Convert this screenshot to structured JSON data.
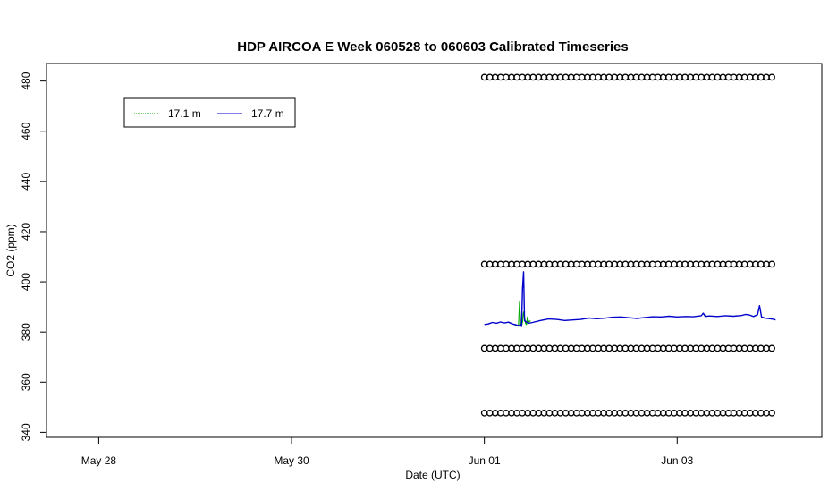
{
  "chart_data": {
    "type": "line",
    "title": "HDP AIRCOA E  Week 060528 to 060603  Calibrated Timeseries",
    "xlabel": "Date (UTC)",
    "ylabel": "CO2 (ppm)",
    "x_unit": "days",
    "xlim": [
      "2006-05-27 11:00",
      "2006-06-04 12:00"
    ],
    "ylim": [
      338,
      487
    ],
    "x_ticks": [
      {
        "label": "May 28",
        "value": "2006-05-28"
      },
      {
        "label": "May 30",
        "value": "2006-05-30"
      },
      {
        "label": "Jun 01",
        "value": "2006-06-01"
      },
      {
        "label": "Jun 03",
        "value": "2006-06-03"
      }
    ],
    "y_ticks": [
      340,
      360,
      380,
      400,
      420,
      440,
      460,
      480
    ],
    "grid": false,
    "legend": {
      "position": "top-left",
      "entries": [
        {
          "label": "17.1 m",
          "color": "#00aa00",
          "style": "dotted"
        },
        {
          "label": "17.7 m",
          "color": "#0000cc",
          "style": "solid"
        }
      ]
    },
    "series": [
      {
        "name": "17.1 m",
        "color": "#00aa00",
        "x": [
          "2006-06-01 07:30",
          "2006-06-01 08:00",
          "2006-06-01 08:30",
          "2006-06-01 08:45",
          "2006-06-01 09:00",
          "2006-06-01 09:15",
          "2006-06-01 09:30",
          "2006-06-01 09:45",
          "2006-06-01 10:00",
          "2006-06-01 10:15",
          "2006-06-01 10:30",
          "2006-06-01 10:45",
          "2006-06-01 11:00",
          "2006-06-01 11:30"
        ],
        "y": [
          383.0,
          382.5,
          382.3,
          392.0,
          383.0,
          382.6,
          384.0,
          388.0,
          386.0,
          383.5,
          383.0,
          386.0,
          384.0,
          384.5
        ]
      },
      {
        "name": "17.7 m",
        "color": "#0000cc",
        "x": [
          "2006-06-01 00:00",
          "2006-06-01 01:00",
          "2006-06-01 02:00",
          "2006-06-01 03:00",
          "2006-06-01 04:00",
          "2006-06-01 05:00",
          "2006-06-01 06:00",
          "2006-06-01 07:00",
          "2006-06-01 08:00",
          "2006-06-01 08:30",
          "2006-06-01 09:00",
          "2006-06-01 09:15",
          "2006-06-01 09:30",
          "2006-06-01 09:45",
          "2006-06-01 10:00",
          "2006-06-01 11:00",
          "2006-06-01 12:00",
          "2006-06-01 14:00",
          "2006-06-01 16:00",
          "2006-06-01 18:00",
          "2006-06-01 20:00",
          "2006-06-01 22:00",
          "2006-06-02 00:00",
          "2006-06-02 02:00",
          "2006-06-02 04:00",
          "2006-06-02 06:00",
          "2006-06-02 08:00",
          "2006-06-02 10:00",
          "2006-06-02 12:00",
          "2006-06-02 14:00",
          "2006-06-02 16:00",
          "2006-06-02 18:00",
          "2006-06-02 20:00",
          "2006-06-02 22:00",
          "2006-06-03 00:00",
          "2006-06-03 02:00",
          "2006-06-03 04:00",
          "2006-06-03 06:00",
          "2006-06-03 06:30",
          "2006-06-03 07:00",
          "2006-06-03 08:00",
          "2006-06-03 10:00",
          "2006-06-03 12:00",
          "2006-06-03 14:00",
          "2006-06-03 16:00",
          "2006-06-03 17:00",
          "2006-06-03 18:00",
          "2006-06-03 19:00",
          "2006-06-03 20:00",
          "2006-06-03 20:30",
          "2006-06-03 21:00",
          "2006-06-03 22:00",
          "2006-06-04 00:00",
          "2006-06-04 00:30"
        ],
        "y": [
          383.0,
          383.2,
          383.8,
          383.5,
          384.0,
          383.6,
          383.9,
          383.2,
          382.8,
          382.5,
          383.0,
          382.2,
          397.0,
          404.0,
          384.5,
          383.5,
          383.8,
          384.6,
          385.2,
          385.0,
          384.6,
          384.8,
          385.0,
          385.6,
          385.3,
          385.5,
          385.9,
          386.0,
          385.7,
          385.4,
          385.8,
          386.1,
          386.0,
          386.3,
          386.0,
          386.2,
          386.1,
          386.5,
          387.5,
          386.2,
          386.4,
          386.2,
          386.5,
          386.3,
          386.6,
          387.0,
          386.8,
          386.2,
          386.9,
          390.5,
          386.0,
          385.5,
          385.1,
          384.8
        ]
      }
    ],
    "calibration_points": {
      "levels": [
        481.5,
        407.0,
        373.5,
        347.7
      ],
      "x_start": "2006-06-01 00:00",
      "x_end": "2006-06-04 00:30",
      "spacing_hours": 1.35,
      "marker": "open-circle"
    }
  }
}
